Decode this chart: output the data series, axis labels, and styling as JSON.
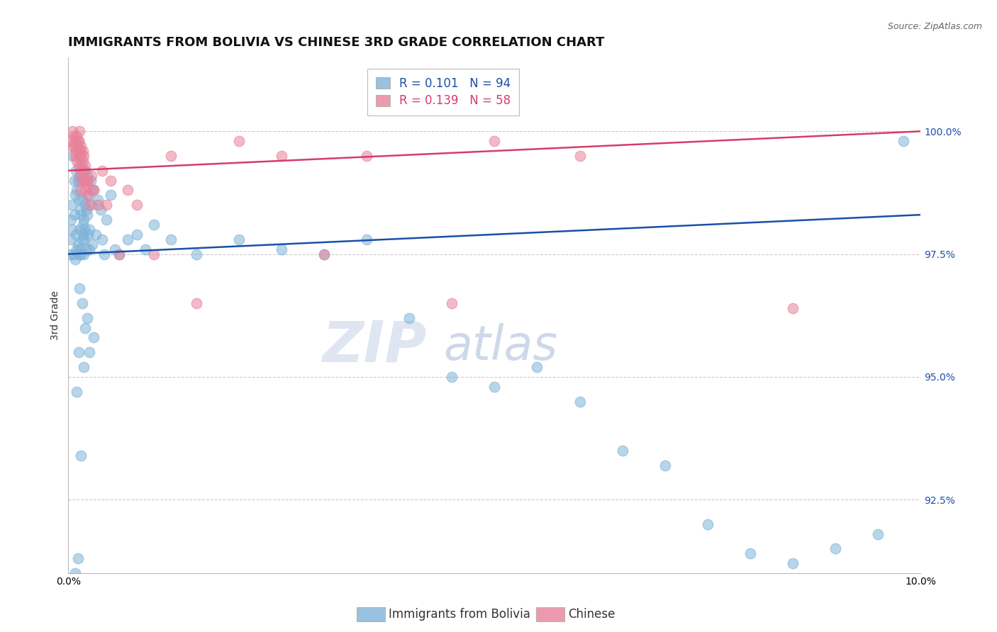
{
  "title": "IMMIGRANTS FROM BOLIVIA VS CHINESE 3RD GRADE CORRELATION CHART",
  "source_text": "Source: ZipAtlas.com",
  "ylabel": "3rd Grade",
  "legend_label_blue": "Immigrants from Bolivia",
  "legend_label_pink": "Chinese",
  "r_blue": 0.101,
  "n_blue": 94,
  "r_pink": 0.139,
  "n_pink": 58,
  "color_blue": "#7eb3d8",
  "color_pink": "#e8829a",
  "line_color_blue": "#1a4faa",
  "line_color_pink": "#d63c6a",
  "watermark_line1": "ZIP",
  "watermark_line2": "atlas",
  "watermark_color": "#d0d8e8",
  "xlim": [
    0.0,
    10.0
  ],
  "ylim": [
    91.0,
    101.5
  ],
  "yticks": [
    92.5,
    95.0,
    97.5,
    100.0
  ],
  "ytick_labels": [
    "92.5%",
    "95.0%",
    "97.5%",
    "100.0%"
  ],
  "xtick_labels": [
    "0.0%",
    "10.0%"
  ],
  "xticks": [
    0.0,
    10.0
  ],
  "blue_x": [
    0.02,
    0.03,
    0.03,
    0.04,
    0.05,
    0.05,
    0.06,
    0.07,
    0.07,
    0.08,
    0.08,
    0.09,
    0.09,
    0.1,
    0.1,
    0.11,
    0.11,
    0.12,
    0.12,
    0.13,
    0.13,
    0.14,
    0.14,
    0.14,
    0.15,
    0.15,
    0.15,
    0.16,
    0.16,
    0.17,
    0.17,
    0.18,
    0.18,
    0.18,
    0.19,
    0.19,
    0.2,
    0.2,
    0.21,
    0.21,
    0.22,
    0.22,
    0.23,
    0.24,
    0.25,
    0.25,
    0.26,
    0.27,
    0.28,
    0.3,
    0.32,
    0.35,
    0.38,
    0.4,
    0.42,
    0.45,
    0.5,
    0.55,
    0.6,
    0.7,
    0.8,
    0.9,
    1.0,
    1.2,
    1.5,
    2.0,
    2.5,
    3.0,
    3.5,
    4.0,
    4.5,
    5.0,
    5.5,
    6.0,
    6.5,
    7.0,
    7.5,
    8.0,
    8.5,
    9.0,
    9.5,
    9.8,
    0.13,
    0.16,
    0.22,
    0.3,
    0.12,
    0.18,
    0.08,
    0.11,
    0.2,
    0.25,
    0.15,
    0.1
  ],
  "blue_y": [
    97.5,
    98.2,
    97.8,
    98.5,
    99.5,
    98.0,
    97.5,
    98.3,
    99.0,
    98.7,
    97.4,
    99.2,
    97.9,
    98.8,
    97.6,
    99.0,
    97.7,
    98.6,
    97.5,
    99.0,
    98.0,
    99.2,
    98.4,
    97.6,
    99.1,
    98.3,
    97.5,
    98.6,
    97.8,
    98.1,
    97.9,
    99.0,
    98.2,
    97.5,
    97.8,
    98.0,
    99.2,
    98.5,
    97.6,
    98.4,
    99.1,
    98.3,
    97.9,
    98.7,
    98.0,
    97.6,
    99.0,
    98.5,
    97.7,
    98.8,
    97.9,
    98.6,
    98.4,
    97.8,
    97.5,
    98.2,
    98.7,
    97.6,
    97.5,
    97.8,
    97.9,
    97.6,
    98.1,
    97.8,
    97.5,
    97.8,
    97.6,
    97.5,
    97.8,
    96.2,
    95.0,
    94.8,
    95.2,
    94.5,
    93.5,
    93.2,
    92.0,
    91.4,
    91.2,
    91.5,
    91.8,
    99.8,
    96.8,
    96.5,
    96.2,
    95.8,
    95.5,
    95.2,
    91.0,
    91.3,
    96.0,
    95.5,
    93.4,
    94.7
  ],
  "pink_x": [
    0.03,
    0.04,
    0.05,
    0.06,
    0.07,
    0.08,
    0.08,
    0.09,
    0.1,
    0.1,
    0.11,
    0.12,
    0.12,
    0.13,
    0.13,
    0.13,
    0.14,
    0.14,
    0.15,
    0.15,
    0.15,
    0.16,
    0.17,
    0.17,
    0.18,
    0.18,
    0.19,
    0.2,
    0.2,
    0.21,
    0.22,
    0.23,
    0.25,
    0.27,
    0.27,
    0.3,
    0.35,
    0.4,
    0.45,
    0.5,
    0.6,
    0.7,
    0.8,
    1.0,
    1.2,
    1.5,
    2.0,
    2.5,
    3.0,
    3.5,
    4.5,
    5.0,
    6.0,
    0.12,
    0.14,
    0.18,
    0.22,
    8.5
  ],
  "pink_y": [
    99.8,
    99.7,
    100.0,
    99.9,
    99.7,
    99.5,
    99.8,
    99.6,
    99.4,
    99.9,
    99.7,
    99.3,
    99.8,
    99.5,
    99.1,
    100.0,
    99.6,
    98.8,
    99.5,
    99.3,
    99.7,
    99.0,
    99.4,
    99.6,
    99.2,
    99.5,
    99.0,
    98.8,
    99.3,
    99.0,
    98.7,
    99.0,
    98.5,
    99.1,
    98.8,
    98.8,
    98.5,
    99.2,
    98.5,
    99.0,
    97.5,
    98.8,
    98.5,
    97.5,
    99.5,
    96.5,
    99.8,
    99.5,
    97.5,
    99.5,
    96.5,
    99.8,
    99.5,
    99.8,
    99.6,
    99.2,
    98.9,
    96.4
  ],
  "background_color": "#ffffff",
  "grid_color": "#cccccc",
  "title_fontsize": 13,
  "axis_label_fontsize": 10,
  "tick_fontsize": 10,
  "legend_fontsize": 12
}
